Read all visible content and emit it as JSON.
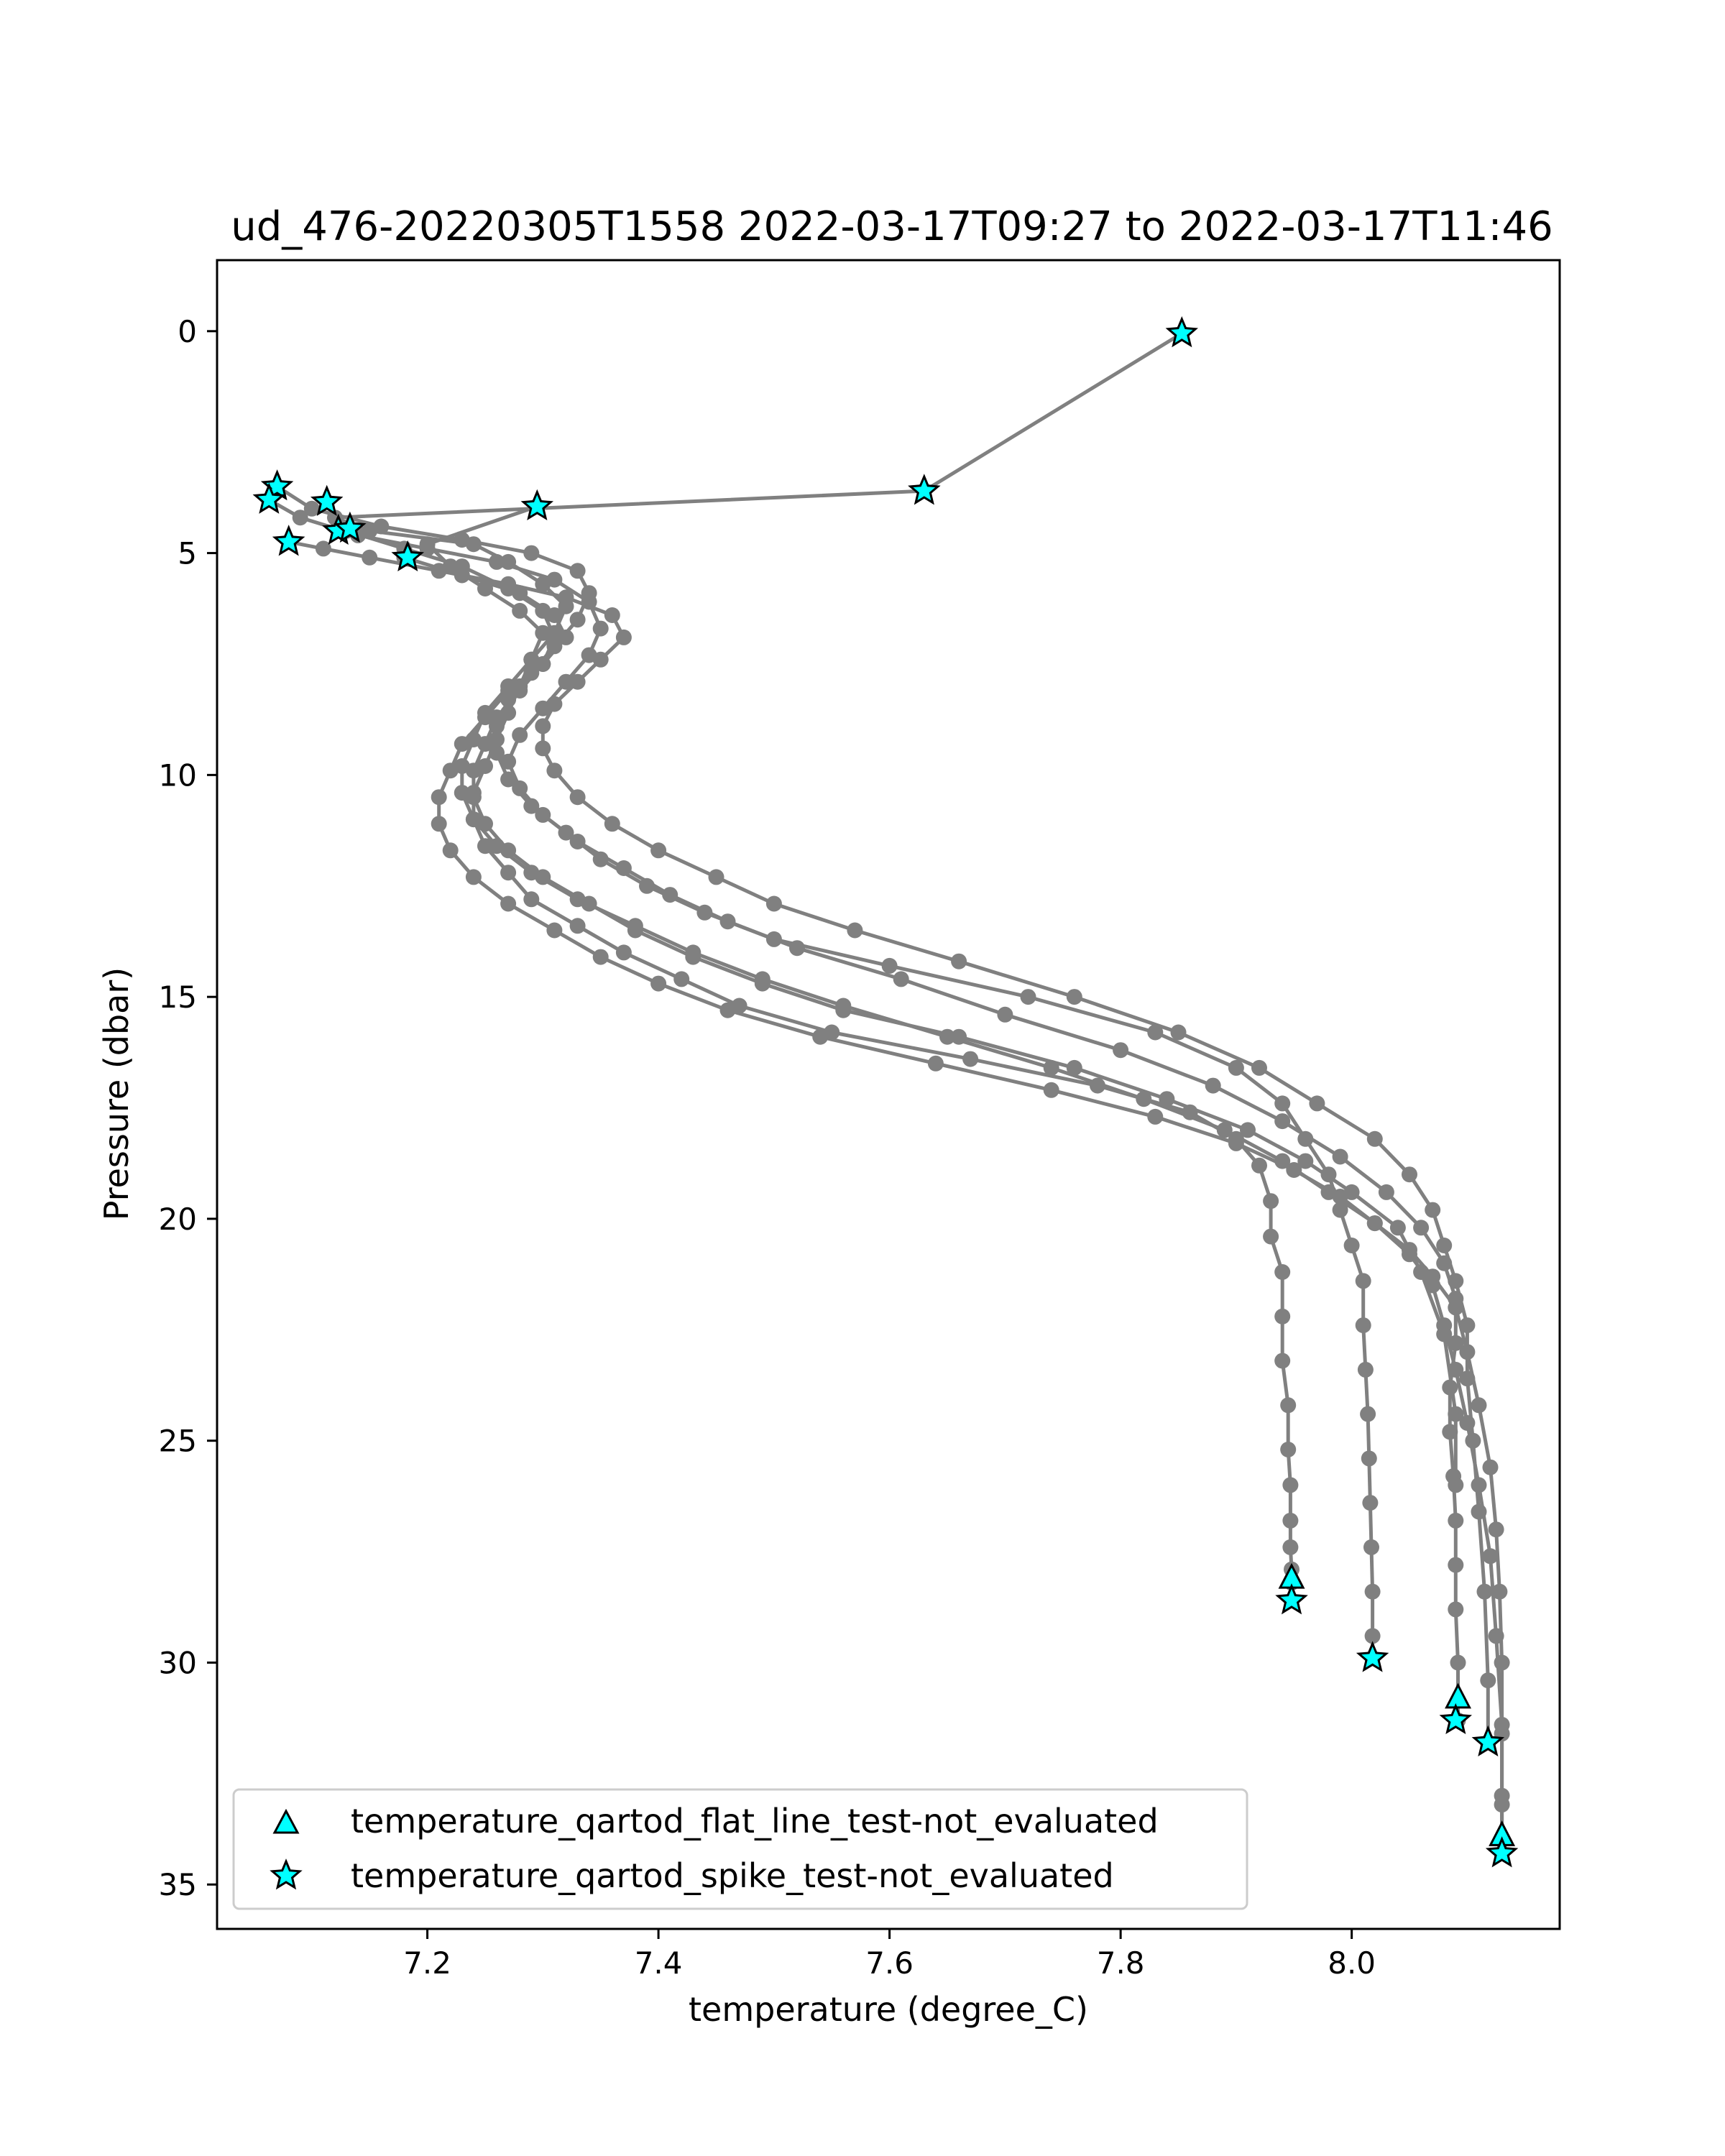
{
  "chart_data": {
    "type": "line",
    "title": "ud_476-20220305T1558 2022-03-17T09:27 to 2022-03-17T11:46",
    "xlabel": "temperature (degree_C)",
    "ylabel": "Pressure (dbar)",
    "xlim": [
      7.018,
      8.18
    ],
    "ylim": [
      36,
      -1.6
    ],
    "y_inverted": true,
    "xticks": [
      "7.2",
      "7.4",
      "7.6",
      "7.8",
      "8.0"
    ],
    "yticks": [
      "0",
      "5",
      "10",
      "15",
      "20",
      "25",
      "30",
      "35"
    ],
    "xtick_values": [
      7.2,
      7.4,
      7.6,
      7.8,
      8.0
    ],
    "ytick_values": [
      0,
      5,
      10,
      15,
      20,
      25,
      30,
      35
    ],
    "grid": false,
    "legend_position": "lower-left",
    "colors": {
      "line": "#808080",
      "marker_fill": "#00ffff",
      "marker_edge": "#000000"
    },
    "legend": [
      {
        "label": "temperature_qartod_flat_line_test-not_evaluated",
        "marker": "triangle"
      },
      {
        "label": "temperature_qartod_spike_test-not_evaluated",
        "marker": "star"
      }
    ],
    "series": [
      {
        "x": [
          7.853,
          7.63,
          7.12,
          7.15,
          7.24,
          7.27,
          7.3,
          7.32,
          7.31,
          7.29,
          7.28,
          7.27,
          7.26,
          7.25,
          7.24,
          7.24,
          7.25,
          7.27,
          7.29,
          7.33,
          7.37,
          7.42,
          7.47,
          7.55,
          7.67,
          7.78,
          7.86,
          7.9,
          7.92,
          7.93,
          7.93,
          7.94,
          7.94,
          7.94,
          7.945,
          7.945,
          7.947,
          7.947,
          7.947,
          7.948,
          7.948,
          7.948,
          7.948
        ],
        "y": [
          0.05,
          3.6,
          4.2,
          4.5,
          4.8,
          5.2,
          5.7,
          6.2,
          6.8,
          7.4,
          8.0,
          8.6,
          9.2,
          9.8,
          10.4,
          11.0,
          11.6,
          12.2,
          12.8,
          13.4,
          14.0,
          14.6,
          15.2,
          15.8,
          16.4,
          17.0,
          17.6,
          18.2,
          18.8,
          19.6,
          20.4,
          21.2,
          22.2,
          23.2,
          24.2,
          25.2,
          26.0,
          26.8,
          27.4,
          27.9,
          28.2,
          28.6,
          28.6
        ]
      },
      {
        "x": [
          7.07,
          7.1,
          7.16,
          7.23,
          7.29,
          7.33,
          7.34,
          7.33,
          7.31,
          7.29,
          7.27,
          7.26,
          7.26,
          7.27,
          7.29,
          7.32,
          7.35,
          7.39,
          7.44,
          7.5,
          7.6,
          7.72,
          7.83,
          7.9,
          7.94,
          7.96,
          7.98,
          7.99,
          8.0,
          8.01,
          8.01,
          8.012,
          8.014,
          8.015,
          8.016,
          8.017,
          8.018,
          8.018,
          8.018
        ],
        "y": [
          3.5,
          4.0,
          4.4,
          4.7,
          5.0,
          5.4,
          5.9,
          6.5,
          7.1,
          7.7,
          8.3,
          8.9,
          9.5,
          10.1,
          10.7,
          11.3,
          11.9,
          12.5,
          13.1,
          13.7,
          14.3,
          15.0,
          15.8,
          16.6,
          17.4,
          18.2,
          19.0,
          19.8,
          20.6,
          21.4,
          22.4,
          23.4,
          24.4,
          25.4,
          26.4,
          27.4,
          28.4,
          29.4,
          29.9
        ]
      },
      {
        "x": [
          7.063,
          7.09,
          7.14,
          7.2,
          7.26,
          7.31,
          7.34,
          7.35,
          7.34,
          7.32,
          7.3,
          7.28,
          7.27,
          7.28,
          7.3,
          7.33,
          7.37,
          7.41,
          7.46,
          7.52,
          7.61,
          7.7,
          7.8,
          7.88,
          7.94,
          7.99,
          8.03,
          8.06,
          8.08,
          8.09,
          8.09,
          8.085,
          8.085,
          8.088,
          8.09,
          8.09,
          8.09,
          8.092,
          8.092
        ],
        "y": [
          3.8,
          4.2,
          4.6,
          4.9,
          5.2,
          5.6,
          6.1,
          6.7,
          7.3,
          7.9,
          8.5,
          9.1,
          9.7,
          10.3,
          10.9,
          11.5,
          12.1,
          12.7,
          13.3,
          13.9,
          14.6,
          15.4,
          16.2,
          17.0,
          17.8,
          18.6,
          19.4,
          20.2,
          21.0,
          21.8,
          22.8,
          23.8,
          24.8,
          25.8,
          26.8,
          27.8,
          28.8,
          30.0,
          31.3
        ]
      },
      {
        "x": [
          7.08,
          7.11,
          7.15,
          7.21,
          7.27,
          7.32,
          7.36,
          7.37,
          7.35,
          7.33,
          7.31,
          7.3,
          7.3,
          7.31,
          7.33,
          7.36,
          7.4,
          7.45,
          7.5,
          7.57,
          7.66,
          7.76,
          7.85,
          7.92,
          7.97,
          8.02,
          8.05,
          8.07,
          8.08,
          8.09,
          8.1,
          8.1,
          8.105,
          8.11,
          8.115,
          8.118,
          8.118
        ],
        "y": [
          4.75,
          4.9,
          5.1,
          5.4,
          5.7,
          6.0,
          6.4,
          6.9,
          7.4,
          7.9,
          8.4,
          8.9,
          9.4,
          9.9,
          10.5,
          11.1,
          11.7,
          12.3,
          12.9,
          13.5,
          14.2,
          15.0,
          15.8,
          16.6,
          17.4,
          18.2,
          19.0,
          19.8,
          20.6,
          21.4,
          22.4,
          23.6,
          25.0,
          26.6,
          28.4,
          30.4,
          31.8
        ]
      },
      {
        "x": [
          7.18,
          7.23,
          7.28,
          7.31,
          7.32,
          7.3,
          7.27,
          7.25,
          7.23,
          7.22,
          7.21,
          7.21,
          7.22,
          7.24,
          7.27,
          7.31,
          7.35,
          7.4,
          7.46,
          7.54,
          7.64,
          7.74,
          7.83,
          7.9,
          7.95,
          7.99,
          8.02,
          8.05,
          8.07,
          8.09,
          8.1,
          8.11,
          8.12,
          8.125,
          8.128,
          8.13,
          8.13,
          8.13,
          8.13
        ],
        "y": [
          5.1,
          5.5,
          5.9,
          6.4,
          6.9,
          7.5,
          8.1,
          8.7,
          9.3,
          9.9,
          10.5,
          11.1,
          11.7,
          12.3,
          12.9,
          13.5,
          14.1,
          14.7,
          15.3,
          15.9,
          16.5,
          17.1,
          17.7,
          18.3,
          18.9,
          19.5,
          20.1,
          20.7,
          21.3,
          22.0,
          23.0,
          24.2,
          25.6,
          27.0,
          28.4,
          30.0,
          31.6,
          33.2,
          34.3
        ]
      },
      {
        "x": [
          7.295,
          7.2,
          7.22,
          7.25,
          7.28,
          7.3,
          7.29,
          7.27,
          7.25,
          7.24,
          7.23,
          7.23,
          7.24,
          7.26,
          7.29,
          7.33,
          7.38,
          7.43,
          7.49,
          7.56,
          7.65,
          7.74,
          7.82,
          7.89,
          7.94,
          7.98,
          8.02,
          8.05,
          8.07,
          8.08,
          8.09,
          8.1,
          8.11,
          8.12,
          8.125,
          8.13,
          8.13,
          8.13
        ],
        "y": [
          3.95,
          4.8,
          5.3,
          5.8,
          6.3,
          6.8,
          7.4,
          8.0,
          8.6,
          9.2,
          9.8,
          10.4,
          11.0,
          11.6,
          12.2,
          12.8,
          13.4,
          14.0,
          14.6,
          15.2,
          15.9,
          16.6,
          17.3,
          18.0,
          18.7,
          19.4,
          20.1,
          20.8,
          21.5,
          22.4,
          23.4,
          24.6,
          26.0,
          27.6,
          29.4,
          31.4,
          33.0,
          34.0
        ]
      },
      {
        "x": [
          7.13,
          7.18,
          7.23,
          7.27,
          7.3,
          7.31,
          7.3,
          7.28,
          7.26,
          7.25,
          7.24,
          7.24,
          7.25,
          7.27,
          7.3,
          7.34,
          7.38,
          7.43,
          7.49,
          7.56,
          7.66,
          7.76,
          7.84,
          7.91,
          7.96,
          8.0,
          8.04,
          8.06,
          8.08,
          8.09,
          8.09
        ],
        "y": [
          4.5,
          4.9,
          5.3,
          5.8,
          6.3,
          6.9,
          7.5,
          8.1,
          8.7,
          9.3,
          9.9,
          10.5,
          11.1,
          11.7,
          12.3,
          12.9,
          13.5,
          14.1,
          14.7,
          15.3,
          15.9,
          16.6,
          17.3,
          18.0,
          18.7,
          19.4,
          20.2,
          21.2,
          22.6,
          24.4,
          26.0
        ]
      }
    ],
    "flat_line_markers": {
      "x": [
        7.948,
        8.092,
        8.13
      ],
      "y": [
        28.1,
        30.8,
        33.9
      ]
    },
    "spike_markers": {
      "x": [
        7.853,
        7.07,
        7.063,
        7.113,
        7.295,
        7.63,
        7.123,
        7.133,
        7.08,
        7.183,
        7.948,
        8.018,
        8.09,
        8.118,
        8.13
      ],
      "y": [
        0.05,
        3.5,
        3.8,
        3.85,
        3.95,
        3.6,
        4.5,
        4.45,
        4.75,
        5.1,
        28.6,
        29.9,
        31.3,
        31.8,
        34.3
      ]
    }
  }
}
